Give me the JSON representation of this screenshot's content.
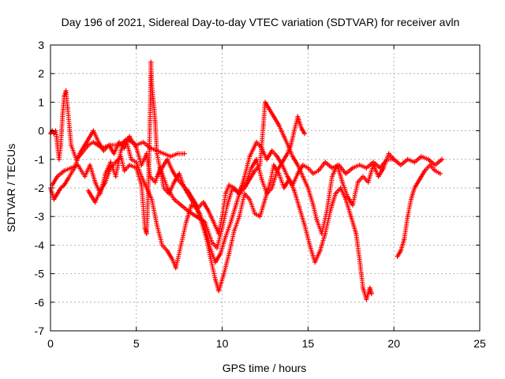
{
  "chart_data": {
    "type": "scatter",
    "title": "Day 196 of 2021, Sidereal Day-to-day VTEC variation (SDTVAR) for receiver avln",
    "xlabel": "GPS time / hours",
    "ylabel": "SDTVAR / TECUs",
    "xlim": [
      0,
      25
    ],
    "ylim": [
      -7,
      3
    ],
    "xticks": [
      "0",
      "5",
      "10",
      "15",
      "20",
      "25"
    ],
    "yticks": [
      "-7",
      "-6",
      "-5",
      "-4",
      "-3",
      "-2",
      "-1",
      "0",
      "1",
      "2",
      "3"
    ],
    "grid": true,
    "marker": "+",
    "color": "#ff0000",
    "series": [
      {
        "name": "track-1",
        "points": [
          [
            0.0,
            -0.1
          ],
          [
            0.1,
            0.0
          ],
          [
            0.2,
            -0.1
          ],
          [
            0.3,
            0.0
          ],
          [
            0.35,
            -0.2
          ],
          [
            0.4,
            -0.5
          ],
          [
            0.5,
            -1.0
          ],
          [
            0.6,
            -0.5
          ],
          [
            0.7,
            0.5
          ],
          [
            0.8,
            1.2
          ],
          [
            0.9,
            1.4
          ],
          [
            1.0,
            0.8
          ],
          [
            1.2,
            -0.5
          ],
          [
            1.5,
            -1.0
          ],
          [
            1.8,
            -0.8
          ],
          [
            2.2,
            -0.5
          ],
          [
            2.5,
            -0.4
          ],
          [
            3.0,
            -0.6
          ],
          [
            3.5,
            -0.5
          ],
          [
            4.0,
            -0.5
          ],
          [
            4.5,
            -0.3
          ],
          [
            5.0,
            -0.5
          ],
          [
            5.4,
            -0.4
          ],
          [
            5.8,
            -0.6
          ],
          [
            6.2,
            -0.7
          ],
          [
            6.6,
            -0.8
          ],
          [
            7.0,
            -0.9
          ],
          [
            7.4,
            -0.8
          ],
          [
            7.8,
            -0.8
          ]
        ]
      },
      {
        "name": "track-2",
        "points": [
          [
            0.0,
            -2.0
          ],
          [
            0.2,
            -2.4
          ],
          [
            0.4,
            -2.2
          ],
          [
            0.6,
            -2.0
          ],
          [
            0.8,
            -1.9
          ],
          [
            1.0,
            -1.7
          ],
          [
            1.4,
            -1.3
          ],
          [
            1.7,
            -0.8
          ],
          [
            2.0,
            -0.5
          ],
          [
            2.2,
            -0.3
          ],
          [
            2.5,
            0.0
          ],
          [
            2.8,
            -0.4
          ],
          [
            3.1,
            -0.7
          ],
          [
            3.4,
            -0.5
          ],
          [
            3.7,
            -0.8
          ],
          [
            4.0,
            -0.4
          ],
          [
            4.3,
            -0.6
          ],
          [
            4.6,
            -0.2
          ],
          [
            5.0,
            -0.6
          ],
          [
            5.3,
            -1.2
          ],
          [
            5.6,
            -0.8
          ],
          [
            5.8,
            -1.6
          ],
          [
            6.1,
            -1.8
          ],
          [
            6.4,
            -1.3
          ],
          [
            6.8,
            -2.0
          ],
          [
            7.2,
            -2.4
          ],
          [
            7.6,
            -2.6
          ],
          [
            8.0,
            -2.8
          ],
          [
            8.5,
            -3.0
          ],
          [
            9.0,
            -3.2
          ],
          [
            9.4,
            -3.9
          ],
          [
            9.7,
            -4.1
          ],
          [
            10.0,
            -3.4
          ],
          [
            10.3,
            -2.6
          ],
          [
            10.6,
            -2.0
          ],
          [
            11.0,
            -2.2
          ],
          [
            11.3,
            -1.6
          ],
          [
            11.6,
            -0.9
          ],
          [
            12.0,
            -0.4
          ],
          [
            12.3,
            -0.6
          ],
          [
            12.6,
            -1.0
          ],
          [
            12.9,
            -0.7
          ],
          [
            13.2,
            -0.9
          ],
          [
            13.5,
            -1.2
          ],
          [
            13.8,
            -1.6
          ],
          [
            14.1,
            -1.9
          ],
          [
            14.4,
            -1.5
          ],
          [
            14.7,
            -1.2
          ],
          [
            15.0,
            -1.3
          ],
          [
            15.3,
            -1.5
          ],
          [
            15.6,
            -1.4
          ],
          [
            16.0,
            -1.1
          ],
          [
            16.4,
            -1.3
          ],
          [
            16.8,
            -1.2
          ],
          [
            17.2,
            -1.5
          ],
          [
            17.6,
            -1.3
          ],
          [
            18.0,
            -1.2
          ],
          [
            18.4,
            -1.3
          ],
          [
            18.8,
            -1.1
          ],
          [
            19.2,
            -1.3
          ],
          [
            19.6,
            -1.0
          ],
          [
            20.0,
            -1.0
          ],
          [
            20.4,
            -1.2
          ],
          [
            20.8,
            -1.0
          ],
          [
            21.2,
            -1.1
          ],
          [
            21.6,
            -0.9
          ],
          [
            22.0,
            -1.0
          ],
          [
            22.4,
            -1.2
          ],
          [
            22.8,
            -1.0
          ]
        ]
      },
      {
        "name": "track-3",
        "points": [
          [
            0.1,
            -1.9
          ],
          [
            0.4,
            -1.6
          ],
          [
            0.8,
            -1.4
          ],
          [
            1.2,
            -1.3
          ],
          [
            1.6,
            -1.2
          ],
          [
            2.0,
            -1.6
          ],
          [
            2.3,
            -1.2
          ],
          [
            2.6,
            -1.8
          ],
          [
            2.9,
            -2.2
          ],
          [
            3.2,
            -1.5
          ],
          [
            3.5,
            -1.1
          ],
          [
            3.8,
            -1.6
          ],
          [
            4.1,
            -0.7
          ],
          [
            4.4,
            -0.3
          ],
          [
            4.7,
            -1.0
          ],
          [
            5.0,
            -1.1
          ],
          [
            5.3,
            -1.6
          ],
          [
            5.6,
            -2.0
          ],
          [
            5.9,
            -2.4
          ],
          [
            6.2,
            -3.3
          ],
          [
            6.5,
            -4.0
          ],
          [
            6.8,
            -4.2
          ],
          [
            7.1,
            -4.5
          ],
          [
            7.3,
            -4.8
          ],
          [
            7.6,
            -4.0
          ],
          [
            7.9,
            -3.2
          ],
          [
            8.2,
            -2.6
          ],
          [
            8.5,
            -2.7
          ],
          [
            8.8,
            -3.2
          ],
          [
            9.1,
            -3.8
          ],
          [
            9.3,
            -4.4
          ],
          [
            9.6,
            -5.2
          ],
          [
            9.8,
            -5.6
          ],
          [
            10.1,
            -5.0
          ],
          [
            10.4,
            -4.3
          ],
          [
            10.7,
            -3.5
          ],
          [
            11.0,
            -3.0
          ],
          [
            11.3,
            -2.2
          ],
          [
            11.6,
            -2.4
          ],
          [
            11.9,
            -2.9
          ],
          [
            12.2,
            -3.0
          ],
          [
            12.5,
            -2.4
          ],
          [
            12.8,
            -1.8
          ],
          [
            13.0,
            -1.2
          ],
          [
            13.3,
            -1.5
          ],
          [
            13.6,
            -2.0
          ],
          [
            13.9,
            -1.7
          ],
          [
            14.2,
            -2.1
          ],
          [
            14.5,
            -2.7
          ],
          [
            14.8,
            -3.3
          ],
          [
            15.1,
            -4.0
          ],
          [
            15.4,
            -4.6
          ],
          [
            15.7,
            -4.2
          ],
          [
            16.0,
            -3.6
          ],
          [
            16.3,
            -2.8
          ],
          [
            16.6,
            -2.2
          ],
          [
            16.9,
            -2.0
          ],
          [
            17.2,
            -2.4
          ],
          [
            17.5,
            -3.0
          ],
          [
            17.8,
            -3.6
          ],
          [
            18.0,
            -4.5
          ],
          [
            18.2,
            -5.5
          ],
          [
            18.4,
            -5.9
          ],
          [
            18.6,
            -5.5
          ],
          [
            18.7,
            -5.7
          ]
        ]
      },
      {
        "name": "track-4",
        "points": [
          [
            2.2,
            -2.1
          ],
          [
            2.4,
            -2.3
          ],
          [
            2.6,
            -2.5
          ],
          [
            2.9,
            -2.1
          ],
          [
            3.2,
            -1.8
          ],
          [
            3.5,
            -1.3
          ],
          [
            3.8,
            -1.1
          ],
          [
            4.1,
            -0.9
          ],
          [
            4.3,
            -1.4
          ],
          [
            4.6,
            -1.2
          ],
          [
            5.0,
            -1.3
          ],
          [
            5.3,
            -1.9
          ],
          [
            5.5,
            -3.4
          ],
          [
            5.6,
            -3.6
          ],
          [
            5.7,
            -2.0
          ],
          [
            5.8,
            0.5
          ],
          [
            5.85,
            2.4
          ],
          [
            5.9,
            1.6
          ],
          [
            6.0,
            1.0
          ],
          [
            6.1,
            0.3
          ],
          [
            6.2,
            -0.8
          ],
          [
            6.4,
            -1.4
          ],
          [
            6.6,
            -2.0
          ],
          [
            6.9,
            -2.2
          ],
          [
            7.2,
            -1.8
          ],
          [
            7.5,
            -1.5
          ],
          [
            7.8,
            -2.0
          ],
          [
            8.1,
            -2.3
          ],
          [
            8.4,
            -2.6
          ],
          [
            8.7,
            -2.9
          ],
          [
            9.0,
            -3.4
          ],
          [
            9.3,
            -4.1
          ],
          [
            9.6,
            -4.6
          ],
          [
            9.9,
            -4.3
          ],
          [
            10.2,
            -3.7
          ],
          [
            10.5,
            -3.2
          ],
          [
            10.8,
            -2.6
          ],
          [
            11.1,
            -2.0
          ],
          [
            11.4,
            -1.8
          ],
          [
            11.7,
            -1.3
          ],
          [
            12.0,
            -1.0
          ],
          [
            12.3,
            -1.7
          ],
          [
            12.6,
            -2.2
          ],
          [
            12.9,
            -2.0
          ],
          [
            13.2,
            -1.4
          ],
          [
            13.5,
            -1.1
          ],
          [
            13.8,
            -0.8
          ],
          [
            14.0,
            -0.5
          ],
          [
            14.2,
            0.0
          ],
          [
            14.4,
            0.5
          ],
          [
            14.6,
            0.1
          ],
          [
            14.8,
            -0.1
          ]
        ]
      },
      {
        "name": "track-5",
        "points": [
          [
            6.2,
            -1.6
          ],
          [
            6.5,
            -1.3
          ],
          [
            6.8,
            -1.0
          ],
          [
            7.1,
            -1.4
          ],
          [
            7.4,
            -1.7
          ],
          [
            7.7,
            -1.9
          ],
          [
            8.0,
            -2.1
          ],
          [
            8.3,
            -2.4
          ],
          [
            8.6,
            -2.7
          ],
          [
            8.9,
            -2.5
          ],
          [
            9.2,
            -2.8
          ],
          [
            9.5,
            -3.2
          ],
          [
            9.8,
            -3.6
          ],
          [
            10.0,
            -3.0
          ],
          [
            10.2,
            -2.2
          ],
          [
            10.4,
            -1.9
          ],
          [
            10.7,
            -2.0
          ],
          [
            11.0,
            -2.2
          ],
          [
            11.3,
            -2.0
          ],
          [
            11.6,
            -1.7
          ],
          [
            11.9,
            -1.4
          ],
          [
            12.2,
            -1.2
          ],
          [
            12.4,
            0.2
          ],
          [
            12.5,
            1.0
          ],
          [
            12.7,
            0.8
          ],
          [
            13.0,
            0.5
          ],
          [
            13.3,
            0.2
          ],
          [
            13.6,
            -0.2
          ],
          [
            13.9,
            -0.6
          ],
          [
            14.1,
            -0.9
          ],
          [
            14.4,
            -1.2
          ],
          [
            14.7,
            -1.6
          ],
          [
            15.0,
            -2.0
          ],
          [
            15.3,
            -2.6
          ],
          [
            15.5,
            -3.1
          ],
          [
            15.8,
            -3.6
          ],
          [
            16.1,
            -2.8
          ],
          [
            16.4,
            -1.6
          ],
          [
            16.7,
            -1.2
          ],
          [
            17.0,
            -1.8
          ],
          [
            17.3,
            -2.3
          ],
          [
            17.6,
            -2.6
          ],
          [
            17.9,
            -1.8
          ],
          [
            18.2,
            -1.6
          ],
          [
            18.5,
            -1.8
          ],
          [
            18.8,
            -1.2
          ],
          [
            19.1,
            -1.6
          ],
          [
            19.4,
            -1.3
          ],
          [
            19.7,
            -0.8
          ],
          [
            20.0,
            -1.0
          ]
        ]
      },
      {
        "name": "track-6",
        "points": [
          [
            20.2,
            -4.4
          ],
          [
            20.4,
            -4.2
          ],
          [
            20.6,
            -3.8
          ],
          [
            20.8,
            -3.0
          ],
          [
            21.0,
            -2.4
          ],
          [
            21.2,
            -2.0
          ],
          [
            21.5,
            -1.7
          ],
          [
            21.8,
            -1.4
          ],
          [
            22.1,
            -1.2
          ],
          [
            22.4,
            -1.4
          ],
          [
            22.7,
            -1.5
          ]
        ]
      }
    ]
  }
}
